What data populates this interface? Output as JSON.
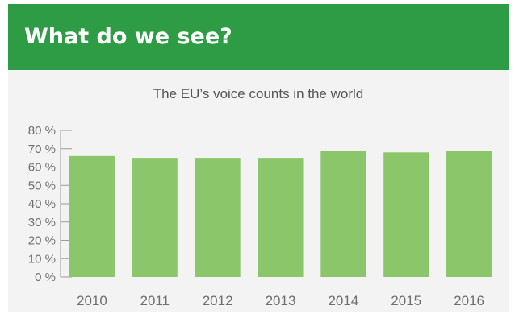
{
  "header": {
    "title": "What do we see?"
  },
  "colors": {
    "header_bg": "#2e9c44",
    "panel_bg": "#f3f3f3",
    "bar": "#8cc66a",
    "axis": "#9a9a9a",
    "text": "#6e6e6e"
  },
  "chart_data": {
    "type": "bar",
    "title": "The EU’s voice counts in the world",
    "categories": [
      "2010",
      "2011",
      "2012",
      "2013",
      "2014",
      "2015",
      "2016"
    ],
    "values": [
      66,
      65,
      65,
      65,
      69,
      68,
      69
    ],
    "unit": "%",
    "ylim": [
      0,
      80
    ],
    "yticks": [
      "0 %",
      "10 %",
      "20 %",
      "30 %",
      "40 %",
      "50 %",
      "60 %",
      "70 %",
      "80 %"
    ],
    "xlabel": "",
    "ylabel": "",
    "grid": false,
    "legend": "none"
  }
}
